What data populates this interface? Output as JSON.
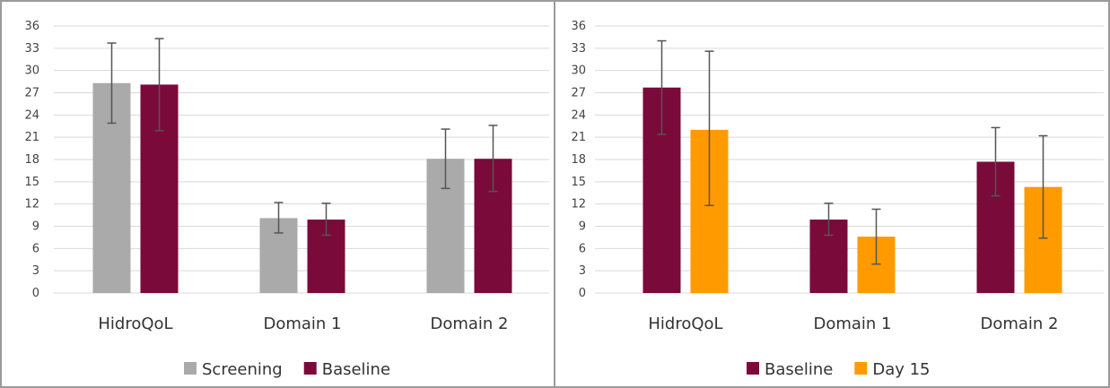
{
  "chart_data": [
    {
      "type": "bar",
      "ylim": [
        0,
        36
      ],
      "yticks": [
        0,
        3,
        6,
        9,
        12,
        15,
        18,
        21,
        24,
        27,
        30,
        33,
        36
      ],
      "grid": true,
      "legend_position": "bottom",
      "categories": [
        "HidroQoL",
        "Domain 1",
        "Domain 2"
      ],
      "series": [
        {
          "name": "Screening",
          "color": "#aaaaaa",
          "values": [
            28.3,
            10.1,
            18.1
          ],
          "err_low": [
            22.9,
            8.1,
            14.1
          ],
          "err_high": [
            33.7,
            12.2,
            22.1
          ]
        },
        {
          "name": "Baseline",
          "color": "#7a0a3a",
          "values": [
            28.1,
            9.9,
            18.1
          ],
          "err_low": [
            21.9,
            7.8,
            13.7
          ],
          "err_high": [
            34.3,
            12.1,
            22.6
          ]
        }
      ]
    },
    {
      "type": "bar",
      "ylim": [
        0,
        36
      ],
      "yticks": [
        0,
        3,
        6,
        9,
        12,
        15,
        18,
        21,
        24,
        27,
        30,
        33,
        36
      ],
      "grid": true,
      "legend_position": "bottom",
      "categories": [
        "HidroQoL",
        "Domain 1",
        "Domain 2"
      ],
      "series": [
        {
          "name": "Baseline",
          "color": "#7a0a3a",
          "values": [
            27.7,
            9.9,
            17.7
          ],
          "err_low": [
            21.4,
            7.8,
            13.1
          ],
          "err_high": [
            34.0,
            12.1,
            22.3
          ]
        },
        {
          "name": "Day 15",
          "color": "#ff9a00",
          "values": [
            22.0,
            7.6,
            14.3
          ],
          "err_low": [
            11.8,
            3.9,
            7.4
          ],
          "err_high": [
            32.6,
            11.3,
            21.2
          ]
        }
      ]
    }
  ]
}
